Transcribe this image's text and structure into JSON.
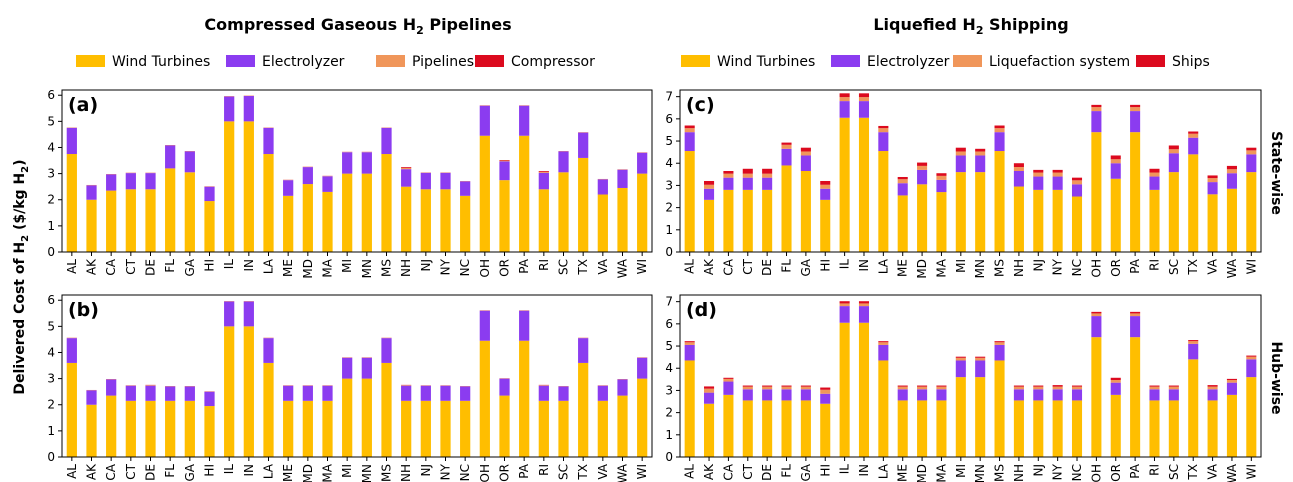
{
  "figure": {
    "ylabel": "Delivered Cost of H",
    "ylabel_sub": "2",
    "ylabel_units_prefix": " ($/kg H",
    "ylabel_units_sub": "2",
    "ylabel_units_suffix": ")",
    "row_labels": [
      "State-wise",
      "Hub-wise"
    ]
  },
  "colors": {
    "wind": "#FFBE00",
    "electrolyzer": "#8B3CF0",
    "transport": "#F0965A",
    "last": "#DC0A1E"
  },
  "chart_data": [
    {
      "type": "bar",
      "stacked": true,
      "panel_label": "(a)",
      "title_main": "Compressed Gaseous H",
      "title_sub": "2",
      "title_end": " Pipelines",
      "legend": [
        "Wind Turbines",
        "Electrolyzer",
        "Pipelines",
        "Compressor"
      ],
      "categories": [
        "AL",
        "AK",
        "CA",
        "CT",
        "DE",
        "FL",
        "GA",
        "HI",
        "IL",
        "IN",
        "LA",
        "ME",
        "MD",
        "MA",
        "MI",
        "MN",
        "MS",
        "NH",
        "NJ",
        "NY",
        "NC",
        "OH",
        "OR",
        "PA",
        "RI",
        "SC",
        "TX",
        "VA",
        "WA",
        "WI"
      ],
      "ylim": [
        0,
        6.2
      ],
      "yticks": [
        0,
        1,
        2,
        3,
        4,
        5,
        6
      ],
      "series": [
        {
          "name": "Wind Turbines",
          "values": [
            3.75,
            2.0,
            2.35,
            2.4,
            2.4,
            3.2,
            3.05,
            1.95,
            5.0,
            5.0,
            3.75,
            2.15,
            2.6,
            2.3,
            3.0,
            3.0,
            3.75,
            2.5,
            2.4,
            2.4,
            2.15,
            4.45,
            2.75,
            4.45,
            2.4,
            3.05,
            3.6,
            2.2,
            2.45,
            3.0
          ]
        },
        {
          "name": "Electrolyzer",
          "values": [
            1.0,
            0.55,
            0.62,
            0.62,
            0.62,
            0.88,
            0.8,
            0.55,
            0.95,
            0.97,
            1.0,
            0.6,
            0.65,
            0.6,
            0.82,
            0.82,
            1.0,
            0.67,
            0.63,
            0.63,
            0.55,
            1.15,
            0.72,
            1.15,
            0.63,
            0.8,
            0.97,
            0.58,
            0.7,
            0.8
          ]
        },
        {
          "name": "Pipelines",
          "values": [
            0.01,
            0.01,
            0.01,
            0.01,
            0.01,
            0.01,
            0.01,
            0.01,
            0.01,
            0.01,
            0.01,
            0.01,
            0.01,
            0.01,
            0.01,
            0.01,
            0.01,
            0.05,
            0.01,
            0.01,
            0.01,
            0.01,
            0.03,
            0.01,
            0.04,
            0.01,
            0.01,
            0.01,
            0.01,
            0.01
          ]
        },
        {
          "name": "Compressor",
          "values": [
            0.005,
            0.005,
            0.005,
            0.005,
            0.005,
            0.005,
            0.005,
            0.005,
            0.005,
            0.005,
            0.005,
            0.005,
            0.005,
            0.005,
            0.005,
            0.005,
            0.005,
            0.03,
            0.005,
            0.005,
            0.005,
            0.005,
            0.02,
            0.005,
            0.03,
            0.005,
            0.005,
            0.005,
            0.005,
            0.005
          ]
        }
      ]
    },
    {
      "type": "bar",
      "stacked": true,
      "panel_label": "(c)",
      "title_main": "Liquefied H",
      "title_sub": "2",
      "title_end": " Shipping",
      "legend": [
        "Wind Turbines",
        "Electrolyzer",
        "Liquefaction system",
        "Ships"
      ],
      "categories": [
        "AL",
        "AK",
        "CA",
        "CT",
        "DE",
        "FL",
        "GA",
        "HI",
        "IL",
        "IN",
        "LA",
        "ME",
        "MD",
        "MA",
        "MI",
        "MN",
        "MS",
        "NH",
        "NJ",
        "NY",
        "NC",
        "OH",
        "OR",
        "PA",
        "RI",
        "SC",
        "TX",
        "VA",
        "WA",
        "WI"
      ],
      "ylim": [
        0,
        7.3
      ],
      "yticks": [
        0,
        1,
        2,
        3,
        4,
        5,
        6,
        7
      ],
      "series": [
        {
          "name": "Wind Turbines",
          "values": [
            4.55,
            2.35,
            2.8,
            2.8,
            2.8,
            3.9,
            3.65,
            2.35,
            6.05,
            6.05,
            4.55,
            2.55,
            3.05,
            2.7,
            3.6,
            3.6,
            4.55,
            2.95,
            2.8,
            2.8,
            2.5,
            5.4,
            3.3,
            5.4,
            2.8,
            3.6,
            4.4,
            2.6,
            2.85,
            3.6
          ]
        },
        {
          "name": "Electrolyzer",
          "values": [
            0.85,
            0.5,
            0.55,
            0.55,
            0.55,
            0.75,
            0.7,
            0.5,
            0.75,
            0.75,
            0.85,
            0.55,
            0.65,
            0.55,
            0.75,
            0.75,
            0.85,
            0.7,
            0.6,
            0.6,
            0.55,
            0.95,
            0.7,
            0.95,
            0.6,
            0.85,
            0.75,
            0.55,
            0.7,
            0.8
          ]
        },
        {
          "name": "Liquefaction system",
          "values": [
            0.18,
            0.18,
            0.18,
            0.18,
            0.18,
            0.18,
            0.18,
            0.18,
            0.18,
            0.18,
            0.18,
            0.18,
            0.18,
            0.18,
            0.18,
            0.18,
            0.18,
            0.18,
            0.18,
            0.18,
            0.18,
            0.18,
            0.18,
            0.18,
            0.18,
            0.18,
            0.18,
            0.18,
            0.18,
            0.18
          ]
        },
        {
          "name": "Ships",
          "values": [
            0.12,
            0.17,
            0.12,
            0.22,
            0.22,
            0.1,
            0.17,
            0.17,
            0.17,
            0.17,
            0.1,
            0.1,
            0.15,
            0.12,
            0.17,
            0.12,
            0.12,
            0.17,
            0.12,
            0.12,
            0.12,
            0.1,
            0.17,
            0.1,
            0.17,
            0.17,
            0.1,
            0.12,
            0.15,
            0.12
          ]
        }
      ]
    },
    {
      "type": "bar",
      "stacked": true,
      "panel_label": "(b)",
      "categories": [
        "AL",
        "AK",
        "CA",
        "CT",
        "DE",
        "FL",
        "GA",
        "HI",
        "IL",
        "IN",
        "LA",
        "ME",
        "MD",
        "MA",
        "MI",
        "MN",
        "MS",
        "NH",
        "NJ",
        "NY",
        "NC",
        "OH",
        "OR",
        "PA",
        "RI",
        "SC",
        "TX",
        "VA",
        "WA",
        "WI"
      ],
      "ylim": [
        0,
        6.2
      ],
      "yticks": [
        0,
        1,
        2,
        3,
        4,
        5,
        6
      ],
      "series": [
        {
          "name": "Wind Turbines",
          "values": [
            3.6,
            2.0,
            2.35,
            2.15,
            2.15,
            2.15,
            2.15,
            1.95,
            5.0,
            5.0,
            3.6,
            2.15,
            2.15,
            2.15,
            3.0,
            3.0,
            3.6,
            2.15,
            2.15,
            2.15,
            2.15,
            4.45,
            2.35,
            4.45,
            2.15,
            2.15,
            3.6,
            2.15,
            2.35,
            3.0
          ]
        },
        {
          "name": "Electrolyzer",
          "values": [
            0.95,
            0.55,
            0.62,
            0.58,
            0.58,
            0.55,
            0.55,
            0.55,
            0.95,
            0.95,
            0.95,
            0.58,
            0.58,
            0.58,
            0.8,
            0.8,
            0.95,
            0.58,
            0.58,
            0.58,
            0.55,
            1.15,
            0.65,
            1.15,
            0.58,
            0.55,
            0.95,
            0.58,
            0.62,
            0.8
          ]
        },
        {
          "name": "Pipelines",
          "values": [
            0.01,
            0.01,
            0.01,
            0.01,
            0.02,
            0.01,
            0.01,
            0.01,
            0.01,
            0.01,
            0.01,
            0.01,
            0.01,
            0.01,
            0.01,
            0.01,
            0.01,
            0.02,
            0.01,
            0.01,
            0.01,
            0.01,
            0.01,
            0.01,
            0.02,
            0.01,
            0.01,
            0.01,
            0.01,
            0.01
          ]
        },
        {
          "name": "Compressor",
          "values": [
            0.005,
            0.005,
            0.005,
            0.005,
            0.01,
            0.005,
            0.005,
            0.005,
            0.005,
            0.005,
            0.005,
            0.005,
            0.005,
            0.005,
            0.005,
            0.005,
            0.005,
            0.01,
            0.005,
            0.005,
            0.005,
            0.005,
            0.005,
            0.005,
            0.01,
            0.005,
            0.005,
            0.005,
            0.005,
            0.005
          ]
        }
      ]
    },
    {
      "type": "bar",
      "stacked": true,
      "panel_label": "(d)",
      "categories": [
        "AL",
        "AK",
        "CA",
        "CT",
        "DE",
        "FL",
        "GA",
        "HI",
        "IL",
        "IN",
        "LA",
        "ME",
        "MD",
        "MA",
        "MI",
        "MN",
        "MS",
        "NH",
        "NJ",
        "NY",
        "NC",
        "OH",
        "OR",
        "PA",
        "RI",
        "SC",
        "TX",
        "VA",
        "WA",
        "WI"
      ],
      "ylim": [
        0,
        7.3
      ],
      "yticks": [
        0,
        1,
        2,
        3,
        4,
        5,
        6,
        7
      ],
      "series": [
        {
          "name": "Wind Turbines",
          "values": [
            4.35,
            2.4,
            2.8,
            2.55,
            2.55,
            2.55,
            2.55,
            2.4,
            6.05,
            6.05,
            4.35,
            2.55,
            2.55,
            2.55,
            3.6,
            3.6,
            4.35,
            2.55,
            2.55,
            2.55,
            2.55,
            5.4,
            2.8,
            5.4,
            2.55,
            2.55,
            4.4,
            2.55,
            2.8,
            3.6
          ]
        },
        {
          "name": "Electrolyzer",
          "values": [
            0.7,
            0.5,
            0.6,
            0.5,
            0.5,
            0.5,
            0.5,
            0.45,
            0.75,
            0.75,
            0.7,
            0.5,
            0.5,
            0.5,
            0.75,
            0.75,
            0.7,
            0.5,
            0.5,
            0.5,
            0.5,
            0.95,
            0.55,
            0.95,
            0.5,
            0.5,
            0.7,
            0.5,
            0.55,
            0.8
          ]
        },
        {
          "name": "Liquefaction system",
          "values": [
            0.12,
            0.18,
            0.12,
            0.12,
            0.12,
            0.12,
            0.12,
            0.18,
            0.12,
            0.12,
            0.12,
            0.12,
            0.12,
            0.12,
            0.12,
            0.12,
            0.12,
            0.12,
            0.12,
            0.12,
            0.12,
            0.12,
            0.12,
            0.12,
            0.12,
            0.12,
            0.12,
            0.12,
            0.12,
            0.12
          ]
        },
        {
          "name": "Ships",
          "values": [
            0.05,
            0.1,
            0.05,
            0.05,
            0.05,
            0.05,
            0.05,
            0.1,
            0.1,
            0.1,
            0.05,
            0.05,
            0.05,
            0.05,
            0.05,
            0.05,
            0.05,
            0.05,
            0.05,
            0.07,
            0.05,
            0.07,
            0.1,
            0.07,
            0.05,
            0.05,
            0.05,
            0.07,
            0.05,
            0.05
          ]
        }
      ]
    }
  ]
}
